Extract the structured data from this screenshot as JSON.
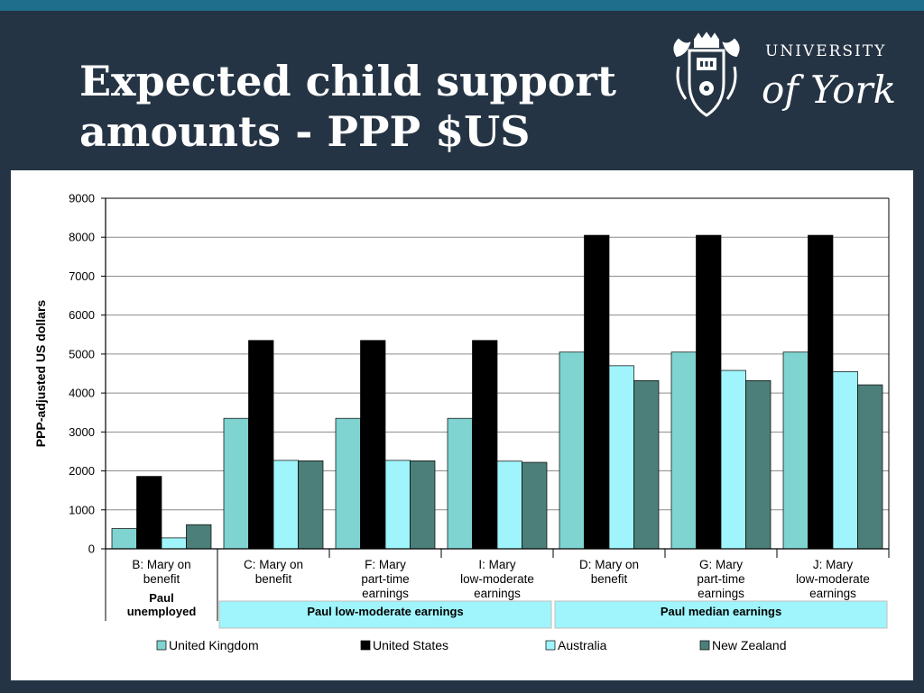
{
  "slide": {
    "title_line1": "Expected child support",
    "title_line2": "amounts - PPP $US"
  },
  "logo": {
    "text_line1": "UNIVERSITY",
    "text_line2": "of York"
  },
  "colors": {
    "background": "#253444",
    "stripe": "#1f6f8c",
    "united_kingdom": "#7fd3d0",
    "united_states": "#000000",
    "australia": "#9ff5fb",
    "new_zealand": "#4c7f79",
    "group_band": "#9ff5fb"
  },
  "chart_data": {
    "type": "bar",
    "title": "",
    "xlabel": "",
    "ylabel": "PPP-adjusted US dollars",
    "ylim": [
      0,
      9000
    ],
    "yticks": [
      0,
      1000,
      2000,
      3000,
      4000,
      5000,
      6000,
      7000,
      8000,
      9000
    ],
    "grid": true,
    "legend_position": "bottom",
    "categories": [
      [
        "B: Mary on",
        "benefit"
      ],
      [
        "C: Mary on",
        "benefit"
      ],
      [
        "F: Mary",
        "part-time",
        "earnings"
      ],
      [
        "I: Mary",
        "low-moderate",
        "earnings"
      ],
      [
        "D: Mary on",
        "benefit"
      ],
      [
        "G: Mary",
        "part-time",
        "earnings"
      ],
      [
        "J: Mary",
        "low-moderate",
        "earnings"
      ]
    ],
    "groups": [
      {
        "label": [
          "Paul",
          "unemployed"
        ],
        "span": [
          0,
          0
        ],
        "highlight": false
      },
      {
        "label": [
          "Paul low-moderate earnings"
        ],
        "span": [
          1,
          3
        ],
        "highlight": true
      },
      {
        "label": [
          "Paul median earnings"
        ],
        "span": [
          4,
          6
        ],
        "highlight": true
      }
    ],
    "series": [
      {
        "name": "United Kingdom",
        "color": "#7fd3d0",
        "values": [
          520,
          3350,
          3350,
          3350,
          5050,
          5050,
          5050
        ]
      },
      {
        "name": "United States",
        "color": "#000000",
        "values": [
          1860,
          5350,
          5350,
          5350,
          8050,
          8050,
          8050
        ]
      },
      {
        "name": "Australia",
        "color": "#9ff5fb",
        "values": [
          280,
          2270,
          2270,
          2250,
          4700,
          4580,
          4550
        ]
      },
      {
        "name": "New Zealand",
        "color": "#4c7f79",
        "values": [
          620,
          2260,
          2260,
          2220,
          4320,
          4320,
          4210
        ]
      }
    ]
  }
}
